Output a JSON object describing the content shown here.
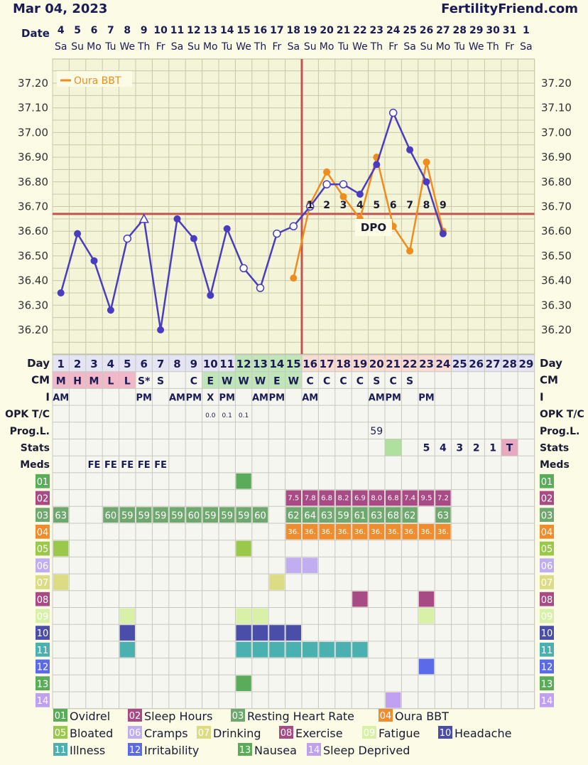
{
  "header": {
    "date": "Mar 04, 2023",
    "site": "FertilityFriend.com"
  },
  "labels": {
    "date": "Date",
    "day": "Day",
    "cm": "CM",
    "i": "I",
    "opk": "OPK T/C",
    "prog": "Prog.L.",
    "stats": "Stats",
    "meds": "Meds",
    "dpo": "DPO"
  },
  "calendar": {
    "dates": [
      "4",
      "5",
      "6",
      "7",
      "8",
      "9",
      "10",
      "11",
      "12",
      "13",
      "14",
      "15",
      "16",
      "17",
      "18",
      "19",
      "20",
      "21",
      "22",
      "23",
      "24",
      "25",
      "26",
      "27",
      "28",
      "29",
      "30",
      "31",
      "1"
    ],
    "weekdays": [
      "Sa",
      "Su",
      "Mo",
      "Tu",
      "We",
      "Th",
      "Fr",
      "Sa",
      "Su",
      "Mo",
      "Tu",
      "We",
      "Th",
      "Fr",
      "Sa",
      "Su",
      "Mo",
      "Tu",
      "We",
      "Th",
      "Fr",
      "Sa",
      "Su",
      "Mo",
      "Tu",
      "We",
      "Th",
      "Fr",
      "Sa"
    ],
    "cycle_days": [
      "1",
      "2",
      "3",
      "4",
      "5",
      "6",
      "7",
      "8",
      "9",
      "10",
      "11",
      "12",
      "13",
      "14",
      "15",
      "16",
      "17",
      "18",
      "19",
      "20",
      "21",
      "22",
      "23",
      "24",
      "25",
      "26",
      "27",
      "28",
      "29"
    ]
  },
  "chart_data": {
    "type": "line",
    "ylim": [
      36.15,
      37.28
    ],
    "y_ticks": [
      "37.20",
      "37.10",
      "37.00",
      "36.90",
      "36.80",
      "36.70",
      "36.60",
      "36.50",
      "36.40",
      "36.30",
      "36.20"
    ],
    "coverline": 36.67,
    "ovulation_day": 15,
    "legend": "Oura BBT",
    "legend_position": "top-left",
    "colors": {
      "main": "#4a3cc0",
      "oura": "#ef8c1e",
      "coverline": "#c25450",
      "grid": "#c8c8a8"
    },
    "series": [
      {
        "values": [
          {
            "day": 1,
            "t": 36.35,
            "m": "dot"
          },
          {
            "day": 2,
            "t": 36.59,
            "m": "dot"
          },
          {
            "day": 3,
            "t": 36.48,
            "m": "dot"
          },
          {
            "day": 4,
            "t": 36.28,
            "m": "dot"
          },
          {
            "day": 5,
            "t": 36.57,
            "m": "open"
          },
          {
            "day": 6,
            "t": 36.65,
            "m": "tri"
          },
          {
            "day": 7,
            "t": 36.2,
            "m": "dot"
          },
          {
            "day": 8,
            "t": 36.65,
            "m": "dot"
          },
          {
            "day": 9,
            "t": 36.57,
            "m": "dot"
          },
          {
            "day": 10,
            "t": 36.34,
            "m": "dot"
          },
          {
            "day": 11,
            "t": 36.61,
            "m": "dot"
          },
          {
            "day": 12,
            "t": 36.45,
            "m": "open"
          },
          {
            "day": 13,
            "t": 36.37,
            "m": "open"
          },
          {
            "day": 14,
            "t": 36.59,
            "m": "open"
          },
          {
            "day": 15,
            "t": 36.62,
            "m": "open"
          },
          {
            "day": 16,
            "t": 36.7,
            "m": "open"
          },
          {
            "day": 17,
            "t": 36.79,
            "m": "open"
          },
          {
            "day": 18,
            "t": 36.79,
            "m": "open"
          },
          {
            "day": 19,
            "t": 36.75,
            "m": "dot"
          },
          {
            "day": 20,
            "t": 36.87,
            "m": "dot"
          },
          {
            "day": 21,
            "t": 37.08,
            "m": "open"
          },
          {
            "day": 22,
            "t": 36.93,
            "m": "dot"
          },
          {
            "day": 23,
            "t": 36.8,
            "m": "dot"
          },
          {
            "day": 24,
            "t": 36.59,
            "m": "dot"
          }
        ]
      },
      {
        "name": "Oura BBT",
        "values": [
          {
            "day": 15,
            "t": 36.41
          },
          {
            "day": 16,
            "t": 36.71
          },
          {
            "day": 17,
            "t": 36.84
          },
          {
            "day": 18,
            "t": 36.74
          },
          {
            "day": 19,
            "t": 36.65
          },
          {
            "day": 20,
            "t": 36.9
          },
          {
            "day": 21,
            "t": 36.62
          },
          {
            "day": 22,
            "t": 36.52
          },
          {
            "day": 23,
            "t": 36.88
          },
          {
            "day": 24,
            "t": 36.6
          }
        ]
      }
    ],
    "dpo_labels": [
      {
        "day": 16,
        "n": "1"
      },
      {
        "day": 17,
        "n": "2"
      },
      {
        "day": 18,
        "n": "3"
      },
      {
        "day": 19,
        "n": "4"
      },
      {
        "day": 20,
        "n": "5"
      },
      {
        "day": 21,
        "n": "6"
      },
      {
        "day": 22,
        "n": "7"
      },
      {
        "day": 23,
        "n": "8"
      },
      {
        "day": 24,
        "n": "9"
      }
    ]
  },
  "rows": {
    "cm": [
      "M",
      "H",
      "M",
      "L",
      "L",
      "S*",
      "S",
      "",
      "C",
      "E",
      "W",
      "W",
      "W",
      "E",
      "W",
      "C",
      "C",
      "C",
      "C",
      "S",
      "C",
      "S",
      "",
      "",
      "",
      "",
      "",
      "",
      ""
    ],
    "i": [
      "AM",
      "",
      "",
      "",
      "",
      "PM",
      "",
      "AM",
      "PM",
      "X",
      "PM",
      "",
      "AM",
      "PM",
      "",
      "AM",
      "",
      "",
      "",
      "AM",
      "PM",
      "",
      "PM",
      "",
      "",
      "",
      "",
      "",
      ""
    ],
    "opk": [
      "",
      "",
      "",
      "",
      "",
      "",
      "",
      "",
      "",
      "0.0",
      "0.1",
      "0.1",
      "",
      "",
      "",
      "",
      "",
      "",
      "",
      "",
      "",
      "",
      "",
      "",
      "",
      "",
      "",
      "",
      ""
    ],
    "prog": [
      "",
      "",
      "",
      "",
      "",
      "",
      "",
      "",
      "",
      "",
      "",
      "",
      "",
      "",
      "",
      "",
      "",
      "",
      "",
      "59",
      "",
      "",
      "",
      "",
      "",
      "",
      "",
      "",
      ""
    ],
    "stats": [
      "",
      "",
      "",
      "",
      "",
      "",
      "",
      "",
      "",
      "",
      "",
      "",
      "",
      "",
      "",
      "",
      "",
      "",
      "",
      "",
      "",
      "",
      "5",
      "4",
      "3",
      "2",
      "1",
      "T",
      ""
    ],
    "meds": [
      "",
      "",
      "FE",
      "FE",
      "FE",
      "FE",
      "FE",
      "",
      "",
      "",
      "",
      "",
      "",
      "",
      "",
      "",
      "",
      "",
      "",
      "",
      "",
      "",
      "",
      "",
      "",
      "",
      "",
      "",
      ""
    ]
  },
  "symptoms": [
    {
      "code": "01",
      "name": "Ovidrel",
      "color": "#5aab5a",
      "code_bg": "#5aab5a",
      "days": [
        12
      ],
      "values": {}
    },
    {
      "code": "02",
      "name": "Sleep Hours",
      "color": "#a84a84",
      "code_bg": "#a84a84",
      "days": [],
      "values": {
        "15": "7.5",
        "16": "7.8",
        "17": "6.8",
        "18": "8.2",
        "19": "6.9",
        "20": "8.0",
        "21": "6.8",
        "22": "7.4",
        "23": "9.5",
        "24": "7.2"
      }
    },
    {
      "code": "03",
      "name": "Resting Heart Rate",
      "color": "#6fa86f",
      "code_bg": "#6fa86f",
      "days": [],
      "values": {
        "1": "63",
        "4": "60",
        "5": "59",
        "6": "59",
        "7": "59",
        "8": "59",
        "9": "60",
        "10": "59",
        "11": "59",
        "12": "59",
        "13": "60",
        "15": "62",
        "16": "64",
        "17": "63",
        "18": "59",
        "19": "61",
        "20": "63",
        "21": "68",
        "22": "62",
        "24": "63"
      }
    },
    {
      "code": "04",
      "name": "Oura BBT",
      "color": "#ef8c2e",
      "code_bg": "#ef8c2e",
      "days": [],
      "values": {
        "15": "36.",
        "16": "36.",
        "17": "36.",
        "18": "36.",
        "19": "36.",
        "20": "36.",
        "21": "36.",
        "22": "36.",
        "23": "36.",
        "24": "36."
      }
    },
    {
      "code": "05",
      "name": "Bloated",
      "color": "#9ac84a",
      "code_bg": "#9ac84a",
      "days": [
        1,
        12
      ],
      "values": {}
    },
    {
      "code": "06",
      "name": "Cramps",
      "color": "#c0aef0",
      "code_bg": "#c0aef0",
      "days": [
        15,
        16
      ],
      "values": {}
    },
    {
      "code": "07",
      "name": "Drinking",
      "color": "#dcdc84",
      "code_bg": "#dcdc84",
      "days": [
        1,
        14
      ],
      "values": {}
    },
    {
      "code": "08",
      "name": "Exercise",
      "color": "#a84a84",
      "code_bg": "#a84a84",
      "days": [
        19,
        23
      ],
      "values": {}
    },
    {
      "code": "09",
      "name": "Fatigue",
      "color": "#d8f0a8",
      "code_bg": "#d8f0a8",
      "days": [
        5,
        12,
        13,
        23
      ],
      "values": {}
    },
    {
      "code": "10",
      "name": "Headache",
      "color": "#4a4ea8",
      "code_bg": "#4a4ea8",
      "days": [
        5,
        12,
        13,
        14,
        15
      ],
      "values": {}
    },
    {
      "code": "11",
      "name": "Illness",
      "color": "#4ab0b0",
      "code_bg": "#4ab0b0",
      "days": [
        5,
        12,
        13,
        14,
        15,
        16,
        17,
        18,
        19
      ],
      "values": {}
    },
    {
      "code": "12",
      "name": "Irritability",
      "color": "#5a6ae8",
      "code_bg": "#5a6ae8",
      "days": [
        23
      ],
      "values": {}
    },
    {
      "code": "13",
      "name": "Nausea",
      "color": "#5aab5a",
      "code_bg": "#5aab5a",
      "days": [
        12
      ],
      "values": {}
    },
    {
      "code": "14",
      "name": "Sleep Deprived",
      "color": "#c0a0f0",
      "code_bg": "#c0a0f0",
      "days": [
        21
      ],
      "values": {}
    }
  ]
}
